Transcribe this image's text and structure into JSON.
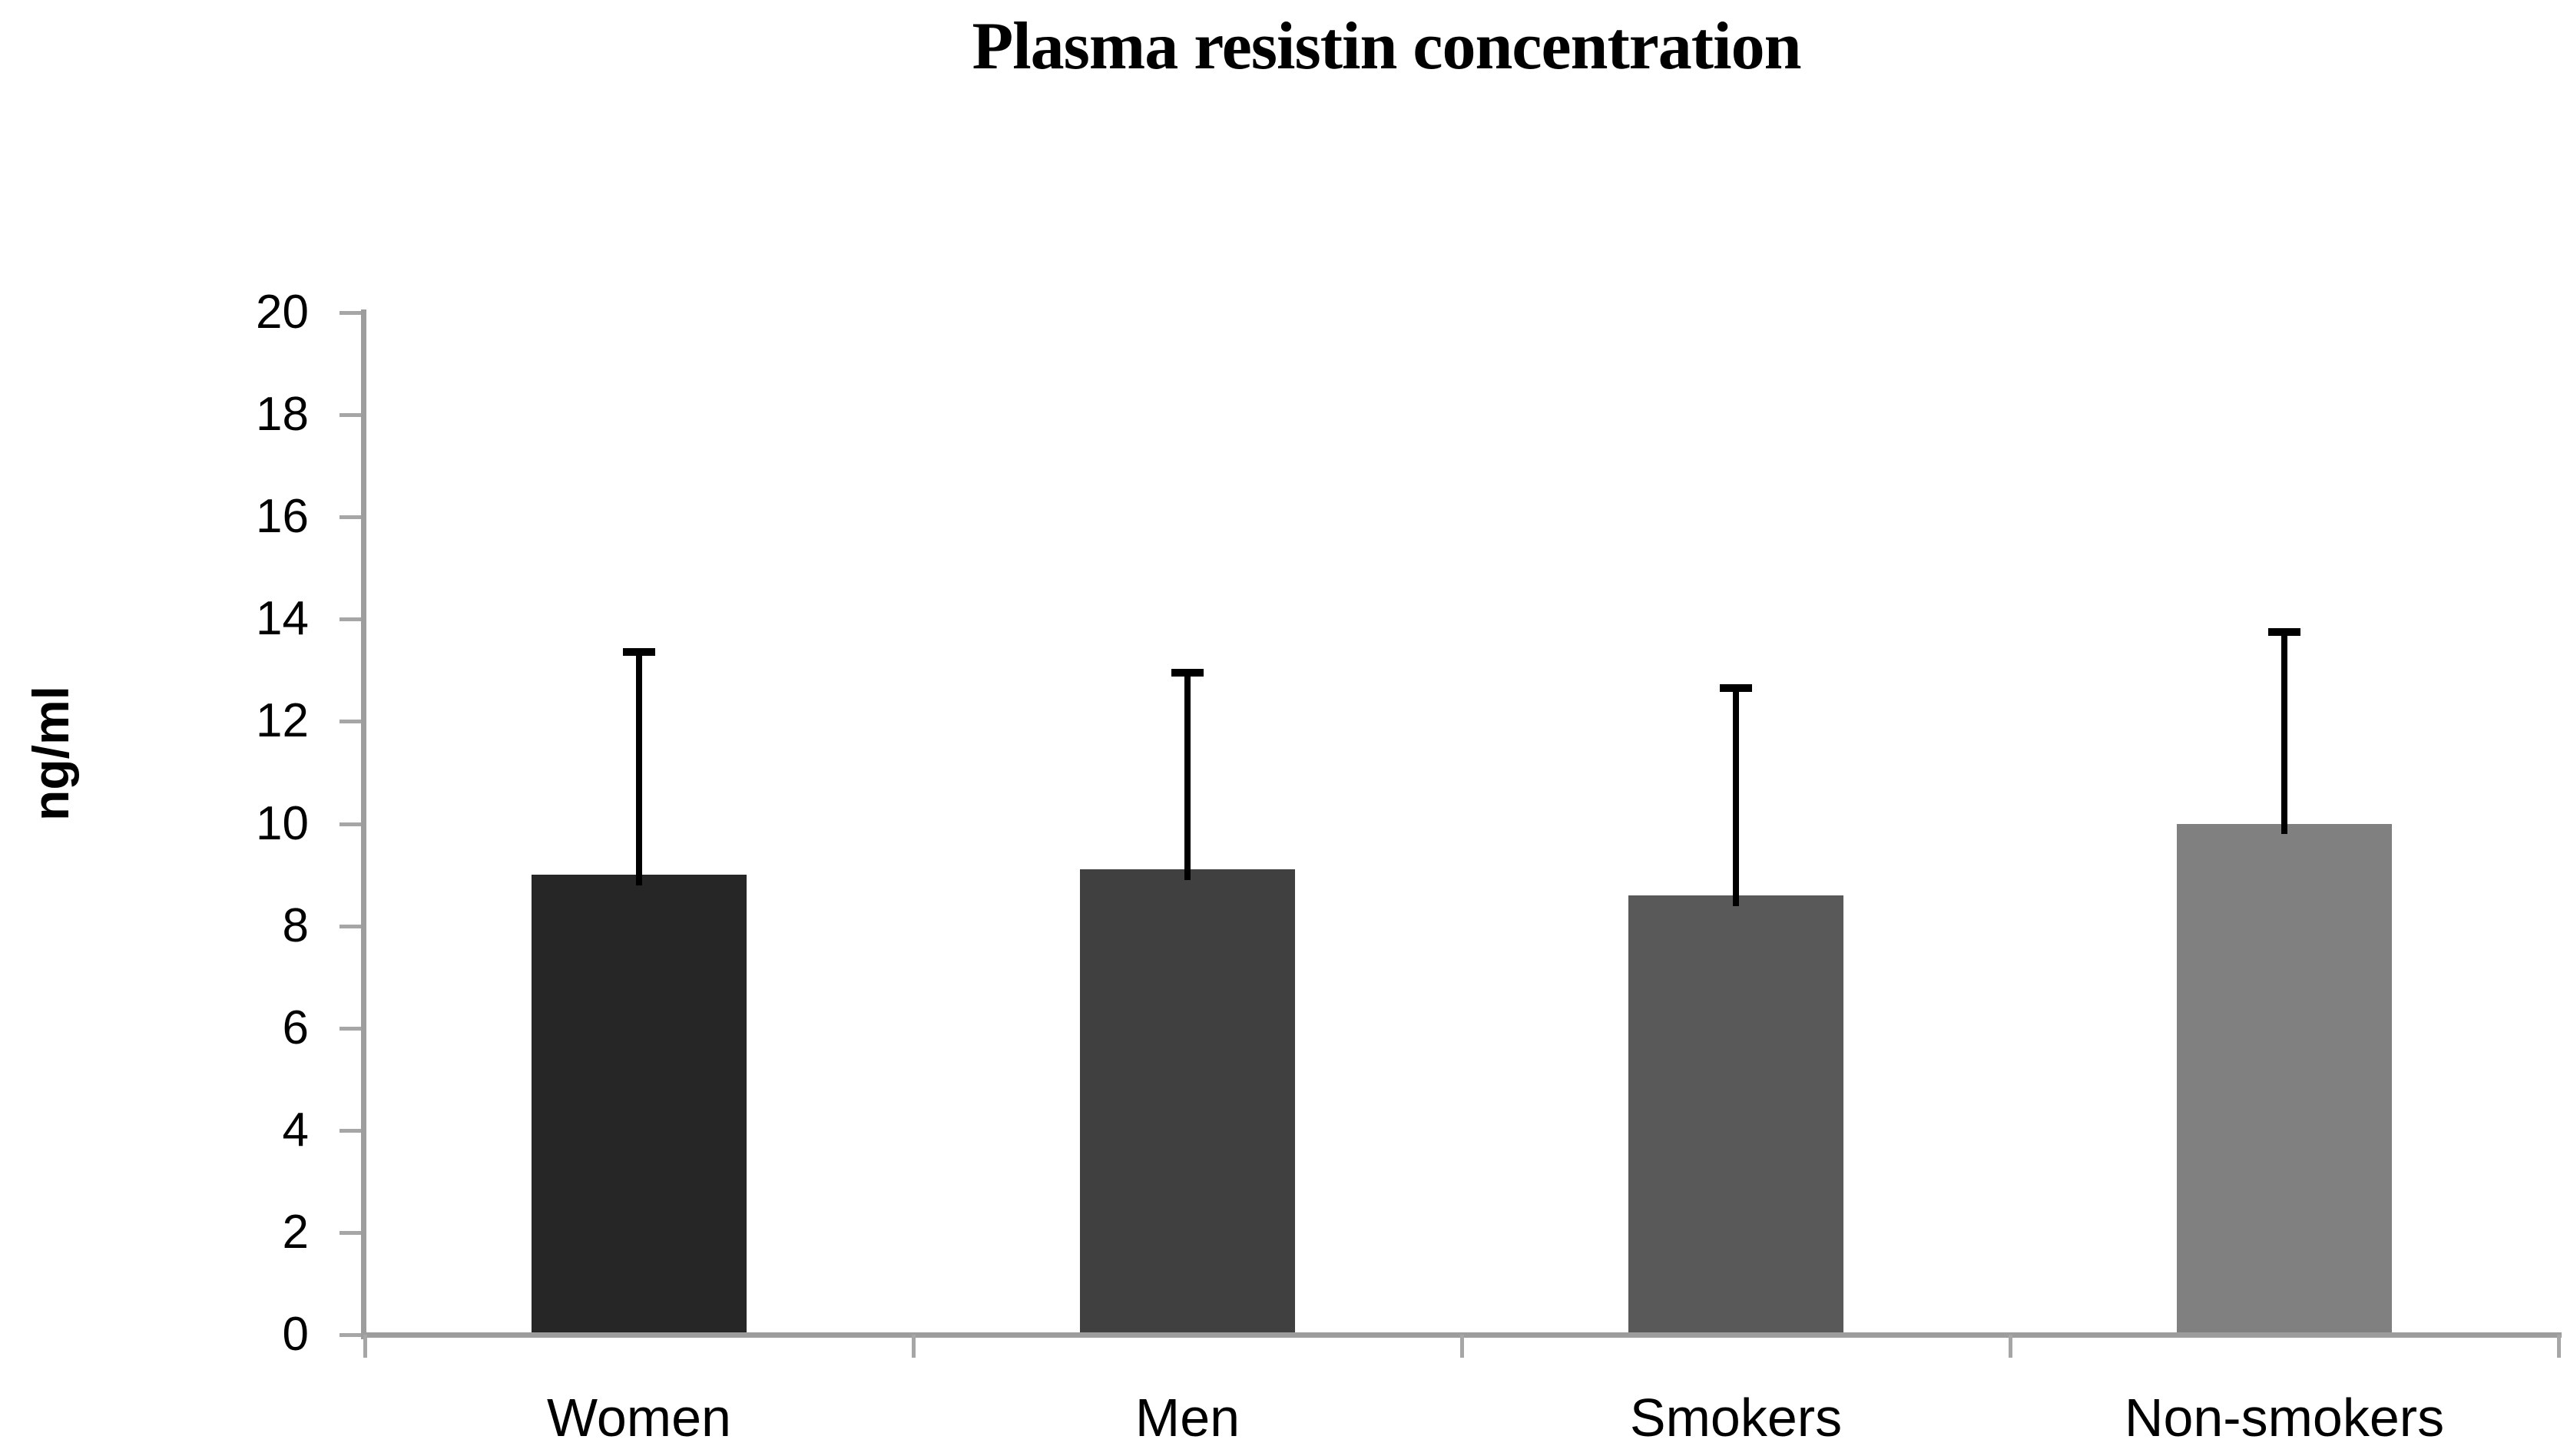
{
  "title": "Plasma resistin concentration",
  "y_axis": {
    "label": "ng/ml",
    "tick_labels": [
      "0",
      "2",
      "4",
      "6",
      "8",
      "10",
      "12",
      "14",
      "16",
      "18",
      "20"
    ]
  },
  "x_axis": {
    "category_labels": [
      "Women",
      "Men",
      "Smokers",
      "Non-smokers"
    ]
  },
  "chart_data": {
    "type": "bar",
    "title": "Plasma resistin concentration",
    "xlabel": "",
    "ylabel": "ng/ml",
    "categories": [
      "Women",
      "Men",
      "Smokers",
      "Non-smokers"
    ],
    "values": [
      9.0,
      9.1,
      8.6,
      10.0
    ],
    "upper_error_whisker_tops": [
      13.4,
      13.0,
      12.7,
      13.8
    ],
    "bar_colors": [
      "#262626",
      "#404040",
      "#595959",
      "#808080"
    ],
    "error_bar_color": "#000000",
    "axis_color": "#9d9d9d",
    "text_color": "#000000",
    "ylim": [
      0,
      20
    ],
    "ytick_step": 2,
    "grid": false,
    "legend": false,
    "error_bars": "upper-only"
  }
}
